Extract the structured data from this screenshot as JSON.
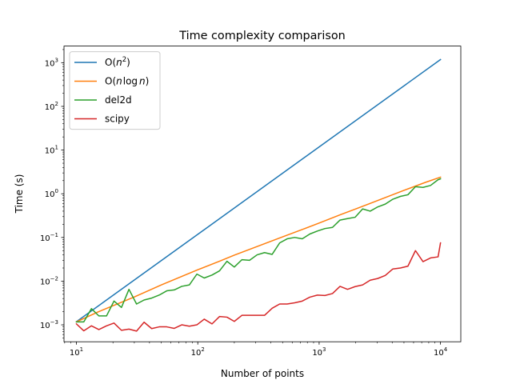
{
  "chart_data": {
    "type": "line",
    "title": "Time complexity comparison",
    "xlabel": "Number of points",
    "ylabel": "Time (s)",
    "xscale": "log",
    "yscale": "log",
    "xlim": [
      7.9,
      14700
    ],
    "ylim": [
      0.00041,
      2400
    ],
    "grid": false,
    "legend_position": "top-left",
    "x_ticks": [
      {
        "value": 10,
        "base": "10",
        "exp": "1"
      },
      {
        "value": 100,
        "base": "10",
        "exp": "2"
      },
      {
        "value": 1000,
        "base": "10",
        "exp": "3"
      },
      {
        "value": 10000,
        "base": "10",
        "exp": "4"
      }
    ],
    "y_ticks": [
      {
        "value": 0.001,
        "base": "10",
        "exp": "−3"
      },
      {
        "value": 0.01,
        "base": "10",
        "exp": "−2"
      },
      {
        "value": 0.1,
        "base": "10",
        "exp": "−1"
      },
      {
        "value": 1,
        "base": "10",
        "exp": "0"
      },
      {
        "value": 10,
        "base": "10",
        "exp": "1"
      },
      {
        "value": 100,
        "base": "10",
        "exp": "2"
      },
      {
        "value": 1000,
        "base": "10",
        "exp": "3"
      }
    ],
    "series": [
      {
        "name": "O(n²)",
        "legend": {
          "prefix": "O(",
          "var": "n",
          "sup": "2",
          "suffix": ")"
        },
        "color": "#1f77b4",
        "x": [
          10,
          10000
        ],
        "y": [
          0.00118,
          1180
        ]
      },
      {
        "name": "O(n log n)",
        "legend": {
          "prefix": "O(",
          "var": "n",
          "mid": "log",
          "var2": "n",
          "suffix": ")"
        },
        "color": "#ff7f0e",
        "x": [
          10,
          15,
          20,
          30,
          50,
          75,
          100,
          150,
          200,
          300,
          500,
          750,
          1000,
          1500,
          2000,
          3000,
          5000,
          7500,
          10000
        ],
        "y": [
          0.00117,
          0.00196,
          0.00273,
          0.00434,
          0.0082,
          0.0131,
          0.0182,
          0.0284,
          0.0393,
          0.0603,
          0.1033,
          0.1573,
          0.2133,
          0.3327,
          0.4486,
          0.6912,
          1.1953,
          1.82,
          2.4
        ]
      },
      {
        "name": "del2d",
        "legend": {
          "text": "del2d"
        },
        "color": "#2ca02c",
        "x": [
          10,
          11.5,
          13.3,
          15.3,
          17.7,
          20.4,
          23.5,
          27.1,
          31.3,
          36.1,
          41.7,
          48.1,
          55.5,
          64,
          73.8,
          85.2,
          98.3,
          113,
          131,
          151,
          174,
          200,
          231,
          267,
          308,
          355,
          410,
          473,
          545,
          629,
          726,
          838,
          967,
          1116,
          1288,
          1486,
          1714,
          1978,
          2283,
          2634,
          3039,
          3507,
          4047,
          4670,
          5388,
          6218,
          7175,
          8279,
          9553,
          10000
        ],
        "y": [
          0.00117,
          0.00117,
          0.00235,
          0.0016,
          0.0016,
          0.0035,
          0.0025,
          0.0065,
          0.003,
          0.0037,
          0.0041,
          0.0048,
          0.006,
          0.0063,
          0.0076,
          0.0082,
          0.0145,
          0.0118,
          0.0138,
          0.0172,
          0.0285,
          0.021,
          0.031,
          0.03,
          0.04,
          0.045,
          0.041,
          0.075,
          0.093,
          0.1,
          0.093,
          0.12,
          0.14,
          0.16,
          0.17,
          0.25,
          0.27,
          0.29,
          0.45,
          0.4,
          0.5,
          0.58,
          0.75,
          0.87,
          0.95,
          1.45,
          1.4,
          1.55,
          2.1,
          2.2
        ]
      },
      {
        "name": "scipy",
        "legend": {
          "text": "scipy"
        },
        "color": "#d62728",
        "x": [
          10,
          11.5,
          13.3,
          15.3,
          17.7,
          20.4,
          23.5,
          27.1,
          31.3,
          36.1,
          41.7,
          48.1,
          55.5,
          64,
          73.8,
          85.2,
          98.3,
          113,
          131,
          151,
          174,
          200,
          231,
          267,
          308,
          355,
          410,
          473,
          545,
          629,
          726,
          838,
          967,
          1116,
          1288,
          1486,
          1714,
          1978,
          2283,
          2634,
          3039,
          3507,
          4047,
          4670,
          5388,
          6218,
          7175,
          8279,
          9553,
          10000
        ],
        "y": [
          0.00105,
          0.00073,
          0.00095,
          0.00078,
          0.00095,
          0.0011,
          0.00075,
          0.0008,
          0.00072,
          0.00115,
          0.00082,
          0.0009,
          0.0009,
          0.00083,
          0.001,
          0.00093,
          0.001,
          0.00135,
          0.00105,
          0.00155,
          0.0015,
          0.0012,
          0.00165,
          0.00165,
          0.00165,
          0.00165,
          0.0024,
          0.003,
          0.003,
          0.0032,
          0.0035,
          0.0043,
          0.0048,
          0.0047,
          0.0052,
          0.0076,
          0.0065,
          0.0075,
          0.0082,
          0.0105,
          0.0115,
          0.0135,
          0.019,
          0.02,
          0.022,
          0.05,
          0.028,
          0.034,
          0.036,
          0.075
        ]
      }
    ]
  }
}
